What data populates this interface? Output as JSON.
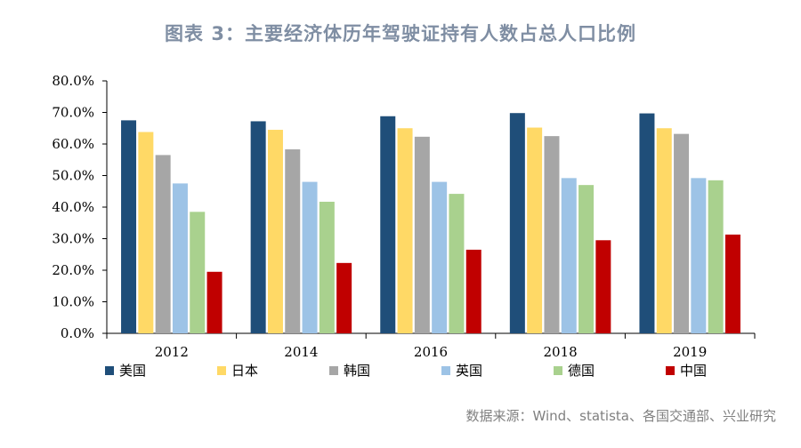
{
  "title": "图表 3：主要经济体历年驾驶证持有人数占总人口比例",
  "source": "数据来源：Wind、statista、各国交通部、兴业研究",
  "chart_data": {
    "type": "bar",
    "categories": [
      "2012",
      "2014",
      "2016",
      "2018",
      "2019"
    ],
    "ylim": [
      0,
      80
    ],
    "yticks": [
      "0.0%",
      "10.0%",
      "20.0%",
      "30.0%",
      "40.0%",
      "50.0%",
      "60.0%",
      "70.0%",
      "80.0%"
    ],
    "grid": false,
    "legend_position": "bottom",
    "series": [
      {
        "name": "美国",
        "color": "#1f4e79",
        "values": [
          67.5,
          67.2,
          68.8,
          69.8,
          69.7
        ]
      },
      {
        "name": "日本",
        "color": "#ffd966",
        "values": [
          63.8,
          64.5,
          65.0,
          65.2,
          65.0
        ]
      },
      {
        "name": "韩国",
        "color": "#a6a6a6",
        "values": [
          56.5,
          58.3,
          62.3,
          62.5,
          63.2
        ]
      },
      {
        "name": "英国",
        "color": "#9dc3e6",
        "values": [
          47.5,
          48.0,
          48.0,
          49.2,
          49.2
        ]
      },
      {
        "name": "德国",
        "color": "#a9d18e",
        "values": [
          38.5,
          41.7,
          44.2,
          47.0,
          48.5
        ]
      },
      {
        "name": "中国",
        "color": "#c00000",
        "values": [
          19.5,
          22.3,
          26.5,
          29.5,
          31.3
        ]
      }
    ]
  }
}
